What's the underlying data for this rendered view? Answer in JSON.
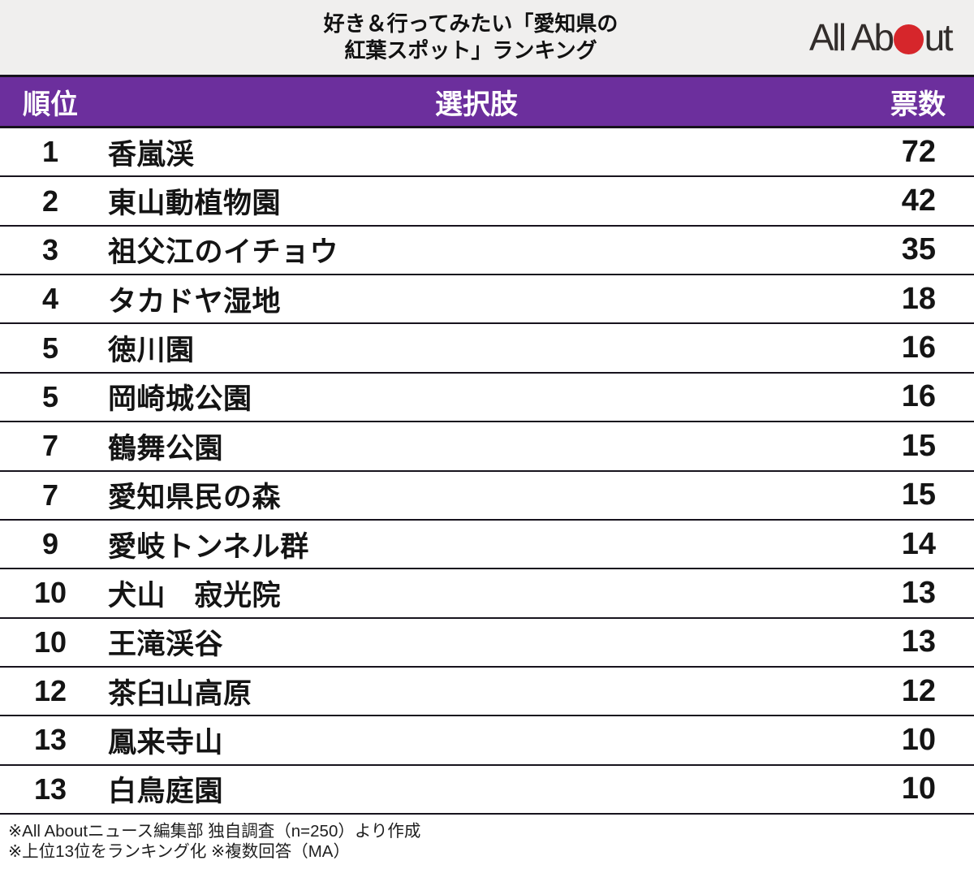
{
  "colors": {
    "accent_purple": "#6c2f9d",
    "line_dark": "#17131d",
    "header_bg": "#f0efee",
    "logo_red": "#d6262b",
    "logo_text": "#322d2b"
  },
  "header": {
    "title_line1": "好き＆行ってみたい「愛知県の",
    "title_line2": "紅葉スポット」ランキング",
    "logo": {
      "alt": "All About",
      "part1": "All Ab",
      "part2": "ut"
    }
  },
  "chart_data": {
    "type": "table",
    "title": "好き＆行ってみたい「愛知県の紅葉スポット」ランキング",
    "columns": [
      "順位",
      "選択肢",
      "票数"
    ],
    "rows": [
      {
        "rank": "1",
        "choice": "香嵐渓",
        "votes": "72"
      },
      {
        "rank": "2",
        "choice": "東山動植物園",
        "votes": "42"
      },
      {
        "rank": "3",
        "choice": "祖父江のイチョウ",
        "votes": "35"
      },
      {
        "rank": "4",
        "choice": "タカドヤ湿地",
        "votes": "18"
      },
      {
        "rank": "5",
        "choice": "徳川園",
        "votes": "16"
      },
      {
        "rank": "5",
        "choice": "岡崎城公園",
        "votes": "16"
      },
      {
        "rank": "7",
        "choice": "鶴舞公園",
        "votes": "15"
      },
      {
        "rank": "7",
        "choice": "愛知県民の森",
        "votes": "15"
      },
      {
        "rank": "9",
        "choice": "愛岐トンネル群",
        "votes": "14"
      },
      {
        "rank": "10",
        "choice": "犬山　寂光院",
        "votes": "13"
      },
      {
        "rank": "10",
        "choice": "王滝渓谷",
        "votes": "13"
      },
      {
        "rank": "12",
        "choice": "茶臼山高原",
        "votes": "12"
      },
      {
        "rank": "13",
        "choice": "鳳来寺山",
        "votes": "10"
      },
      {
        "rank": "13",
        "choice": "白鳥庭園",
        "votes": "10"
      }
    ]
  },
  "footer": {
    "line1": "※All Aboutニュース編集部 独自調査（n=250）より作成",
    "line2": "※上位13位をランキング化 ※複数回答（MA）"
  }
}
